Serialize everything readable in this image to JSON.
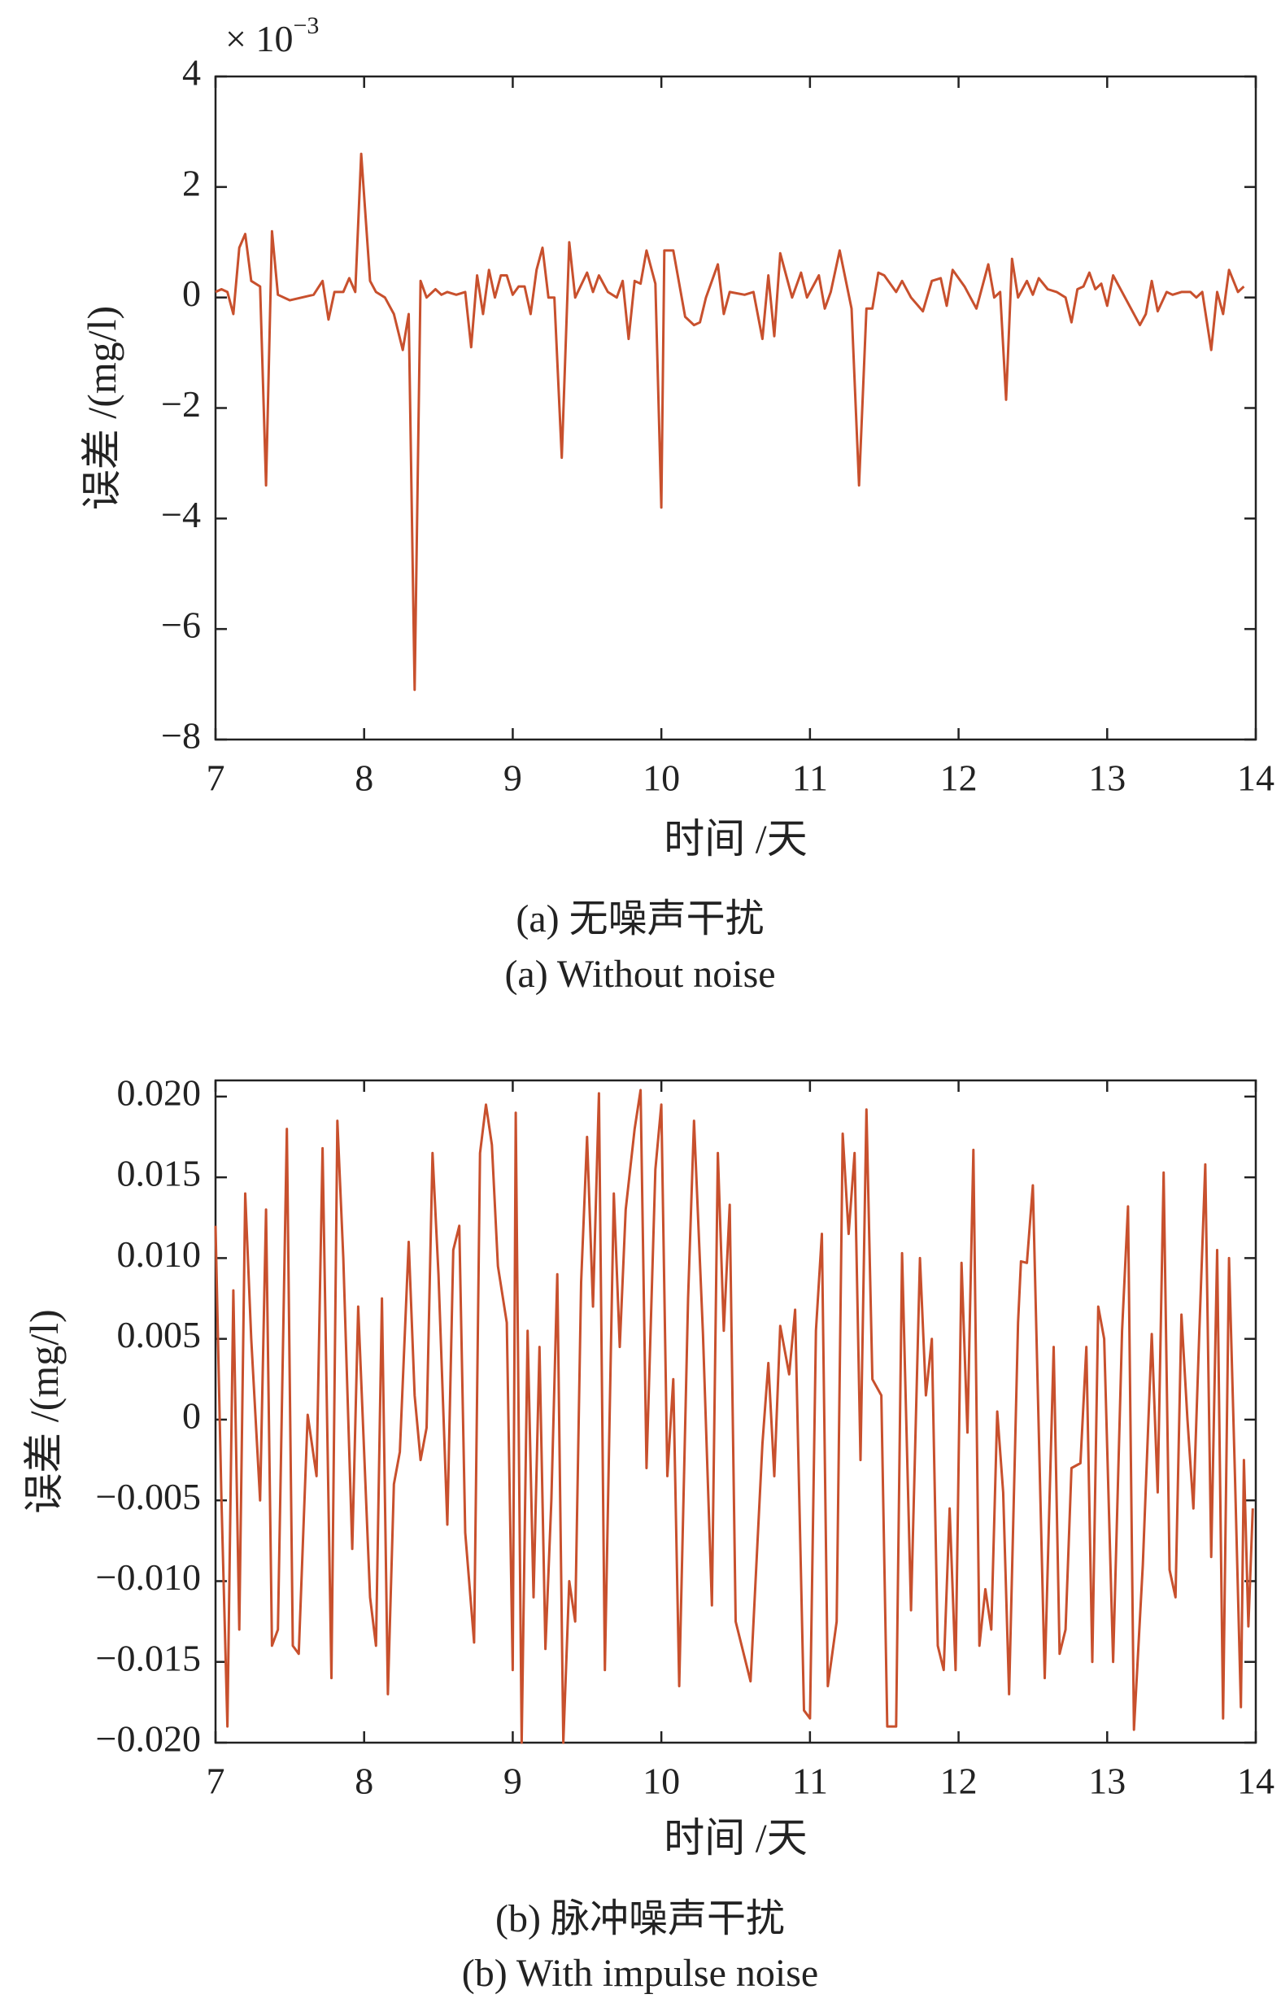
{
  "chart_data": [
    {
      "type": "line",
      "caption": "(a) 无噪声干扰",
      "caption_en": "(a) Without noise",
      "x_label": "时间 /天",
      "y_label": "误差 /(mg/l)",
      "annotation": "× 10",
      "annotation_exponent": "−3",
      "color": "#c8502d",
      "xlim": [
        7,
        14
      ],
      "xticks": [
        7,
        8,
        9,
        10,
        11,
        12,
        13,
        14
      ],
      "ylim": [
        -8,
        4
      ],
      "yticks": [
        {
          "value": -8,
          "label": "−8"
        },
        {
          "value": -6,
          "label": "−6"
        },
        {
          "value": -4,
          "label": "−4"
        },
        {
          "value": -2,
          "label": "−2"
        },
        0,
        2,
        4
      ],
      "x": [
        7.0,
        7.04,
        7.08,
        7.12,
        7.16,
        7.2,
        7.24,
        7.3,
        7.34,
        7.38,
        7.42,
        7.5,
        7.58,
        7.66,
        7.72,
        7.76,
        7.8,
        7.86,
        7.9,
        7.94,
        7.98,
        8.04,
        8.08,
        8.14,
        8.2,
        8.26,
        8.3,
        8.34,
        8.38,
        8.42,
        8.48,
        8.52,
        8.56,
        8.62,
        8.68,
        8.72,
        8.76,
        8.8,
        8.84,
        8.88,
        8.92,
        8.96,
        9.0,
        9.04,
        9.08,
        9.12,
        9.16,
        9.2,
        9.24,
        9.28,
        9.33,
        9.38,
        9.42,
        9.5,
        9.54,
        9.58,
        9.64,
        9.7,
        9.74,
        9.78,
        9.82,
        9.86,
        9.9,
        9.96,
        10.0,
        10.02,
        10.08,
        10.16,
        10.22,
        10.26,
        10.3,
        10.38,
        10.42,
        10.46,
        10.56,
        10.62,
        10.68,
        10.72,
        10.76,
        10.8,
        10.88,
        10.94,
        10.98,
        11.06,
        11.1,
        11.14,
        11.2,
        11.28,
        11.33,
        11.38,
        11.42,
        11.46,
        11.5,
        11.58,
        11.62,
        11.68,
        11.76,
        11.82,
        11.88,
        11.92,
        11.96,
        12.04,
        12.12,
        12.2,
        12.24,
        12.28,
        12.32,
        12.36,
        12.4,
        12.46,
        12.5,
        12.54,
        12.6,
        12.66,
        12.72,
        12.76,
        12.8,
        12.84,
        12.88,
        12.92,
        12.96,
        13.0,
        13.04,
        13.08,
        13.22,
        13.26,
        13.3,
        13.34,
        13.4,
        13.44,
        13.5,
        13.56,
        13.6,
        13.64,
        13.7,
        13.74,
        13.78,
        13.82,
        13.88,
        13.92
      ],
      "values": [
        0.1,
        0.15,
        0.1,
        -0.3,
        0.9,
        1.15,
        0.3,
        0.2,
        -3.4,
        1.2,
        0.05,
        -0.05,
        0.0,
        0.05,
        0.3,
        -0.4,
        0.1,
        0.1,
        0.35,
        0.1,
        2.6,
        0.3,
        0.1,
        0.0,
        -0.3,
        -0.95,
        -0.3,
        -7.1,
        0.3,
        0.0,
        0.15,
        0.05,
        0.1,
        0.05,
        0.1,
        -0.9,
        0.4,
        -0.3,
        0.5,
        0.0,
        0.4,
        0.4,
        0.05,
        0.2,
        0.2,
        -0.3,
        0.5,
        0.9,
        0.0,
        0.0,
        -2.9,
        1.0,
        0.0,
        0.45,
        0.1,
        0.4,
        0.1,
        0.0,
        0.3,
        -0.75,
        0.3,
        0.25,
        0.85,
        0.25,
        -3.8,
        0.85,
        0.85,
        -0.35,
        -0.5,
        -0.45,
        0.0,
        0.6,
        -0.3,
        0.1,
        0.05,
        0.1,
        -0.75,
        0.4,
        -0.7,
        0.8,
        0.0,
        0.45,
        0.0,
        0.4,
        -0.2,
        0.1,
        0.85,
        -0.2,
        -3.4,
        -0.2,
        -0.2,
        0.45,
        0.4,
        0.1,
        0.3,
        0.0,
        -0.25,
        0.3,
        0.35,
        -0.15,
        0.5,
        0.2,
        -0.2,
        0.6,
        0.0,
        0.1,
        -1.85,
        0.7,
        0.0,
        0.3,
        0.05,
        0.35,
        0.15,
        0.1,
        0.0,
        -0.45,
        0.15,
        0.2,
        0.45,
        0.15,
        0.25,
        -0.15,
        0.4,
        0.2,
        -0.5,
        -0.3,
        0.3,
        -0.25,
        0.1,
        0.05,
        0.1,
        0.1,
        0.0,
        0.1,
        -0.95,
        0.1,
        -0.3,
        0.5,
        0.1,
        0.2
      ]
    },
    {
      "type": "line",
      "caption": "(b) 脉冲噪声干扰",
      "caption_en": "(b) With impulse noise",
      "x_label": "时间 /天",
      "y_label": "误差 /(mg/l)",
      "color": "#c8502d",
      "xlim": [
        7,
        14
      ],
      "xticks": [
        7,
        8,
        9,
        10,
        11,
        12,
        13,
        14
      ],
      "ylim": [
        -0.02,
        0.021
      ],
      "yticks": [
        {
          "value": -0.02,
          "label": "−0.020"
        },
        {
          "value": -0.015,
          "label": "−0.015"
        },
        {
          "value": -0.01,
          "label": "−0.010"
        },
        {
          "value": -0.005,
          "label": "−0.005"
        },
        0,
        {
          "value": 0.005,
          "label": "0.005"
        },
        {
          "value": 0.01,
          "label": "0.010"
        },
        {
          "value": 0.015,
          "label": "0.015"
        },
        {
          "value": 0.02,
          "label": "0.020"
        }
      ],
      "x": [
        7.0,
        7.04,
        7.08,
        7.12,
        7.16,
        7.2,
        7.24,
        7.3,
        7.34,
        7.38,
        7.42,
        7.48,
        7.52,
        7.56,
        7.62,
        7.68,
        7.72,
        7.78,
        7.82,
        7.86,
        7.92,
        7.96,
        8.04,
        8.08,
        8.12,
        8.16,
        8.2,
        8.24,
        8.3,
        8.34,
        8.38,
        8.42,
        8.46,
        8.5,
        8.56,
        8.6,
        8.64,
        8.68,
        8.74,
        8.78,
        8.82,
        8.86,
        8.9,
        8.96,
        9.0,
        9.02,
        9.06,
        9.1,
        9.14,
        9.18,
        9.22,
        9.26,
        9.3,
        9.34,
        9.38,
        9.42,
        9.46,
        9.5,
        9.54,
        9.58,
        9.62,
        9.68,
        9.72,
        9.76,
        9.82,
        9.86,
        9.9,
        9.96,
        10.0,
        10.04,
        10.08,
        10.12,
        10.18,
        10.22,
        10.28,
        10.34,
        10.38,
        10.42,
        10.46,
        10.5,
        10.6,
        10.68,
        10.72,
        10.76,
        10.8,
        10.86,
        10.9,
        10.96,
        11.0,
        11.04,
        11.08,
        11.12,
        11.18,
        11.22,
        11.26,
        11.3,
        11.34,
        11.38,
        11.42,
        11.48,
        11.52,
        11.58,
        11.62,
        11.68,
        11.74,
        11.78,
        11.82,
        11.86,
        11.9,
        11.94,
        11.98,
        12.02,
        12.06,
        12.1,
        12.14,
        12.18,
        12.22,
        12.26,
        12.3,
        12.34,
        12.4,
        12.42,
        12.46,
        12.5,
        12.58,
        12.64,
        12.68,
        12.72,
        12.76,
        12.82,
        12.86,
        12.9,
        12.94,
        12.98,
        13.04,
        13.1,
        13.14,
        13.18,
        13.24,
        13.3,
        13.34,
        13.38,
        13.42,
        13.46,
        13.5,
        13.54,
        13.58,
        13.62,
        13.66,
        13.7,
        13.74,
        13.78,
        13.82,
        13.86,
        13.9,
        13.92,
        13.95,
        13.98
      ],
      "values": [
        0.012,
        -0.005,
        -0.019,
        0.008,
        -0.013,
        0.014,
        0.005,
        -0.005,
        0.013,
        -0.014,
        -0.013,
        0.018,
        -0.014,
        -0.0145,
        0.0003,
        -0.0035,
        0.0168,
        -0.016,
        0.0185,
        0.01,
        -0.008,
        0.007,
        -0.011,
        -0.014,
        0.0075,
        -0.017,
        -0.004,
        -0.002,
        0.011,
        0.0015,
        -0.0025,
        -0.0005,
        0.0165,
        0.009,
        -0.0065,
        0.0105,
        0.012,
        -0.007,
        -0.0138,
        0.0165,
        0.0195,
        0.017,
        0.0095,
        0.006,
        -0.0155,
        0.019,
        -0.02,
        0.0055,
        -0.011,
        0.0045,
        -0.0142,
        -0.005,
        0.009,
        -0.02,
        -0.01,
        -0.0125,
        0.0085,
        0.0175,
        0.007,
        0.0202,
        -0.0155,
        0.014,
        0.0045,
        0.013,
        0.018,
        0.0204,
        -0.003,
        0.0155,
        0.0195,
        -0.0035,
        0.0025,
        -0.0165,
        0.0075,
        0.0185,
        0.0053,
        -0.0115,
        0.0165,
        0.0055,
        0.0133,
        -0.0125,
        -0.0162,
        -0.0015,
        0.0035,
        -0.0035,
        0.0058,
        0.0028,
        0.0068,
        -0.018,
        -0.0185,
        0.0055,
        0.0115,
        -0.0165,
        -0.0125,
        0.0177,
        0.0115,
        0.0165,
        -0.0025,
        0.0192,
        0.0025,
        0.0015,
        -0.019,
        -0.019,
        0.0103,
        -0.0118,
        0.01,
        0.0015,
        0.005,
        -0.014,
        -0.0155,
        -0.0055,
        -0.0155,
        0.0097,
        -0.0008,
        0.0167,
        -0.014,
        -0.0105,
        -0.013,
        0.0005,
        -0.0045,
        -0.017,
        0.006,
        0.0098,
        0.0097,
        0.0145,
        -0.016,
        0.0045,
        -0.0145,
        -0.013,
        -0.003,
        -0.0027,
        0.0045,
        -0.015,
        0.007,
        0.005,
        -0.015,
        0.0055,
        0.0132,
        -0.0192,
        -0.009,
        0.0053,
        -0.0045,
        0.0153,
        -0.0093,
        -0.011,
        0.0065,
        0.0,
        -0.0055,
        0.0055,
        0.0158,
        -0.0085,
        0.0105,
        -0.0185,
        0.01,
        -0.0035,
        -0.0178,
        -0.0025,
        -0.0128,
        -0.0055
      ]
    }
  ]
}
